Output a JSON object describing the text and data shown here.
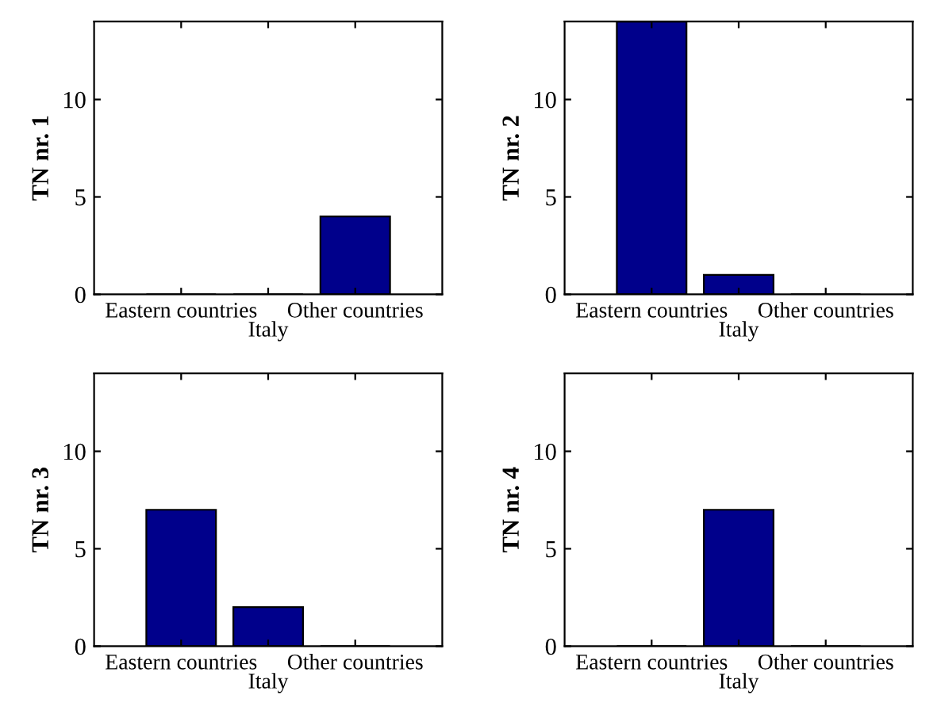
{
  "chart_data": [
    {
      "type": "bar",
      "ylabel": "TN nr. 1",
      "categories": [
        "Eastern countries",
        "Italy",
        "Other countries"
      ],
      "values": [
        0,
        0,
        4
      ],
      "color": "#00008b",
      "ylim": [
        0,
        14
      ],
      "yticks": [
        0,
        5,
        10
      ],
      "grid": false
    },
    {
      "type": "bar",
      "ylabel": "TN nr. 2",
      "categories": [
        "Eastern countries",
        "Italy",
        "Other countries"
      ],
      "values": [
        14,
        1,
        0
      ],
      "color": "#00008b",
      "ylim": [
        0,
        14
      ],
      "yticks": [
        0,
        5,
        10
      ],
      "grid": false
    },
    {
      "type": "bar",
      "ylabel": "TN nr. 3",
      "categories": [
        "Eastern countries",
        "Italy",
        "Other countries"
      ],
      "values": [
        7,
        2,
        0
      ],
      "color": "#00008b",
      "ylim": [
        0,
        14
      ],
      "yticks": [
        0,
        5,
        10
      ],
      "grid": false
    },
    {
      "type": "bar",
      "ylabel": "TN nr. 4",
      "categories": [
        "Eastern countries",
        "Italy",
        "Other countries"
      ],
      "values": [
        0,
        7,
        0
      ],
      "color": "#00008b",
      "ylim": [
        0,
        14
      ],
      "yticks": [
        0,
        5,
        10
      ],
      "grid": false
    }
  ]
}
